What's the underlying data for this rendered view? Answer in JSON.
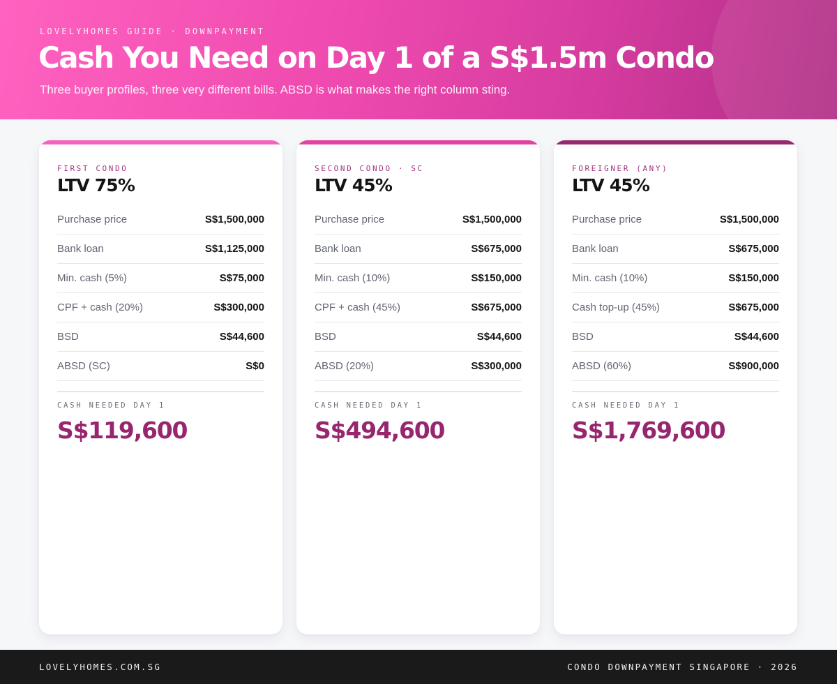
{
  "header": {
    "kicker": "LOVELYHOMES GUIDE · DOWNPAYMENT",
    "title": "Cash You Need on Day 1 of a S$1.5m Condo",
    "subtitle": "Three buyer profiles, three very different bills. ABSD is what makes the right column sting.",
    "gradient_start": "#ff62c0",
    "gradient_end": "#b02e86"
  },
  "cards": [
    {
      "tag": "FIRST CONDO",
      "ltv": "LTV 75%",
      "accent_color": "#f563c0",
      "rows": [
        {
          "label": "Purchase price",
          "value": "S$1,500,000"
        },
        {
          "label": "Bank loan",
          "value": "S$1,125,000"
        },
        {
          "label": "Min. cash (5%)",
          "value": "S$75,000"
        },
        {
          "label": "CPF + cash (20%)",
          "value": "S$300,000"
        },
        {
          "label": "BSD",
          "value": "S$44,600"
        },
        {
          "label": "ABSD (SC)",
          "value": "S$0"
        }
      ],
      "total_label": "CASH NEEDED DAY 1",
      "total_value": "S$119,600"
    },
    {
      "tag": "SECOND CONDO · SC",
      "ltv": "LTV 45%",
      "accent_color": "#e0449f",
      "rows": [
        {
          "label": "Purchase price",
          "value": "S$1,500,000"
        },
        {
          "label": "Bank loan",
          "value": "S$675,000"
        },
        {
          "label": "Min. cash (10%)",
          "value": "S$150,000"
        },
        {
          "label": "CPF + cash (45%)",
          "value": "S$675,000"
        },
        {
          "label": "BSD",
          "value": "S$44,600"
        },
        {
          "label": "ABSD (20%)",
          "value": "S$300,000"
        }
      ],
      "total_label": "CASH NEEDED DAY 1",
      "total_value": "S$494,600"
    },
    {
      "tag": "FOREIGNER (ANY)",
      "ltv": "LTV 45%",
      "accent_color": "#962a72",
      "rows": [
        {
          "label": "Purchase price",
          "value": "S$1,500,000"
        },
        {
          "label": "Bank loan",
          "value": "S$675,000"
        },
        {
          "label": "Min. cash (10%)",
          "value": "S$150,000"
        },
        {
          "label": "Cash top-up (45%)",
          "value": "S$675,000"
        },
        {
          "label": "BSD",
          "value": "S$44,600"
        },
        {
          "label": "ABSD (60%)",
          "value": "S$900,000"
        }
      ],
      "total_label": "CASH NEEDED DAY 1",
      "total_value": "S$1,769,600"
    }
  ],
  "footer": {
    "left": "LOVELYHOMES.COM.SG",
    "right": "CONDO DOWNPAYMENT SINGAPORE · 2026"
  },
  "colors": {
    "total_value": "#96276f",
    "tag": "#a3317f",
    "footer_bg": "#1a1a1a",
    "page_bg": "#f6f7f9"
  }
}
